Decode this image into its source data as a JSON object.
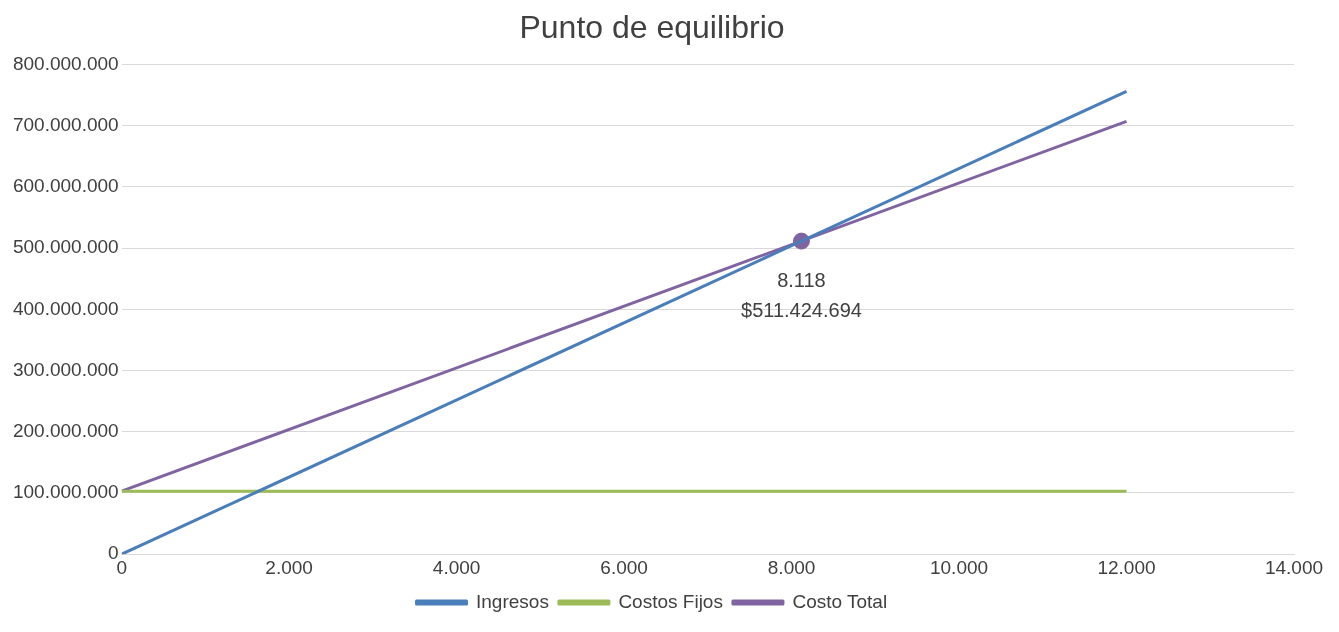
{
  "chart_data": {
    "type": "line",
    "title": "Punto de equilibrio",
    "xlim": [
      0,
      14000
    ],
    "ylim": [
      0,
      800000000
    ],
    "xticks": [
      0,
      {
        "value": 2000,
        "label": "2.000"
      },
      {
        "value": 4000,
        "label": "4.000"
      },
      {
        "value": 6000,
        "label": "6.000"
      },
      {
        "value": 8000,
        "label": "8.000"
      },
      {
        "value": 10000,
        "label": "10.000"
      },
      {
        "value": 12000,
        "label": "12.000"
      },
      {
        "value": 14000,
        "label": "14.000"
      }
    ],
    "yticks": [
      0,
      {
        "value": 100000000,
        "label": "100.000.000"
      },
      {
        "value": 200000000,
        "label": "200.000.000"
      },
      {
        "value": 300000000,
        "label": "300.000.000"
      },
      {
        "value": 400000000,
        "label": "400.000.000"
      },
      {
        "value": 500000000,
        "label": "500.000.000"
      },
      {
        "value": 600000000,
        "label": "600.000.000"
      },
      {
        "value": 700000000,
        "label": "700.000.000"
      },
      {
        "value": 800000000,
        "label": "800.000.000"
      }
    ],
    "grid": "y",
    "legend": "bottom",
    "line_style": "solid",
    "series": [
      {
        "name": "Ingresos",
        "color": "#4a7ebb",
        "x": [
          0,
          12000
        ],
        "values": [
          0,
          756000000
        ],
        "marker": "none"
      },
      {
        "name": "Costos Fijos",
        "color": "#9bbb59",
        "x": [
          0,
          12000
        ],
        "values": [
          103000000,
          103000000
        ],
        "marker": "none"
      },
      {
        "name": "Costo Total",
        "color": "#8064a2",
        "x": [
          0,
          12000
        ],
        "values": [
          103000000,
          707000000
        ],
        "marker": "none"
      },
      {
        "type": "scatter",
        "color": "#8064a2",
        "x": [
          8118
        ],
        "values": [
          511424694
        ],
        "marker": "circle"
      }
    ],
    "annotations": [
      {
        "text": "8.118",
        "x": 8118,
        "y": 511424694
      },
      {
        "text": "$511.424.694",
        "x": 8118,
        "y": 511424694
      }
    ]
  }
}
